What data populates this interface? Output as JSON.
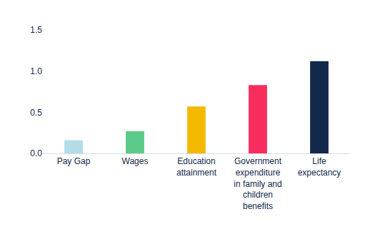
{
  "chart_data": {
    "type": "bar",
    "categories": [
      "Pay Gap",
      "Wages",
      "Education attainment",
      "Government expenditure in family and children benefits",
      "Life expectancy"
    ],
    "values": [
      0.16,
      0.27,
      0.57,
      0.83,
      1.12
    ],
    "colors": [
      "#b3dce8",
      "#5ccb8a",
      "#f5b800",
      "#f72d5e",
      "#13294b"
    ],
    "ylim": [
      0,
      1.5
    ],
    "yticks": [
      {
        "value": 0,
        "label": "0.0"
      },
      {
        "value": 0.5,
        "label": "0.5"
      },
      {
        "value": 1,
        "label": "1.0"
      },
      {
        "value": 1.5,
        "label": "1.5"
      }
    ],
    "grid": false
  }
}
